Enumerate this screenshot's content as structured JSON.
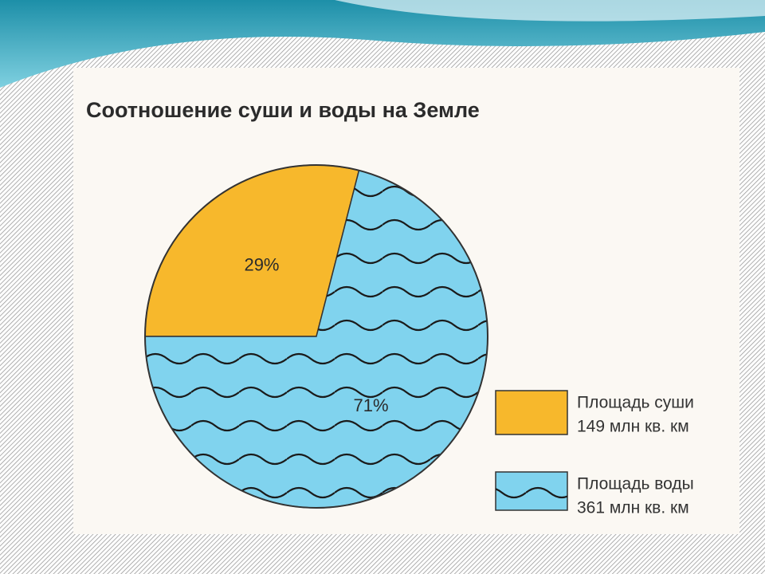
{
  "chart_data": {
    "type": "pie",
    "title": "Соотношение суши и воды на Земле",
    "categories": [
      "Площадь суши",
      "Площадь воды"
    ],
    "details": [
      "149 млн кв. км",
      "361 млн кв. км"
    ],
    "values": [
      29,
      71
    ],
    "value_labels": [
      "29%",
      "71%"
    ],
    "colors": [
      "#f7b82c",
      "#80d3ee"
    ],
    "textures": [
      "plain",
      "waves"
    ]
  }
}
